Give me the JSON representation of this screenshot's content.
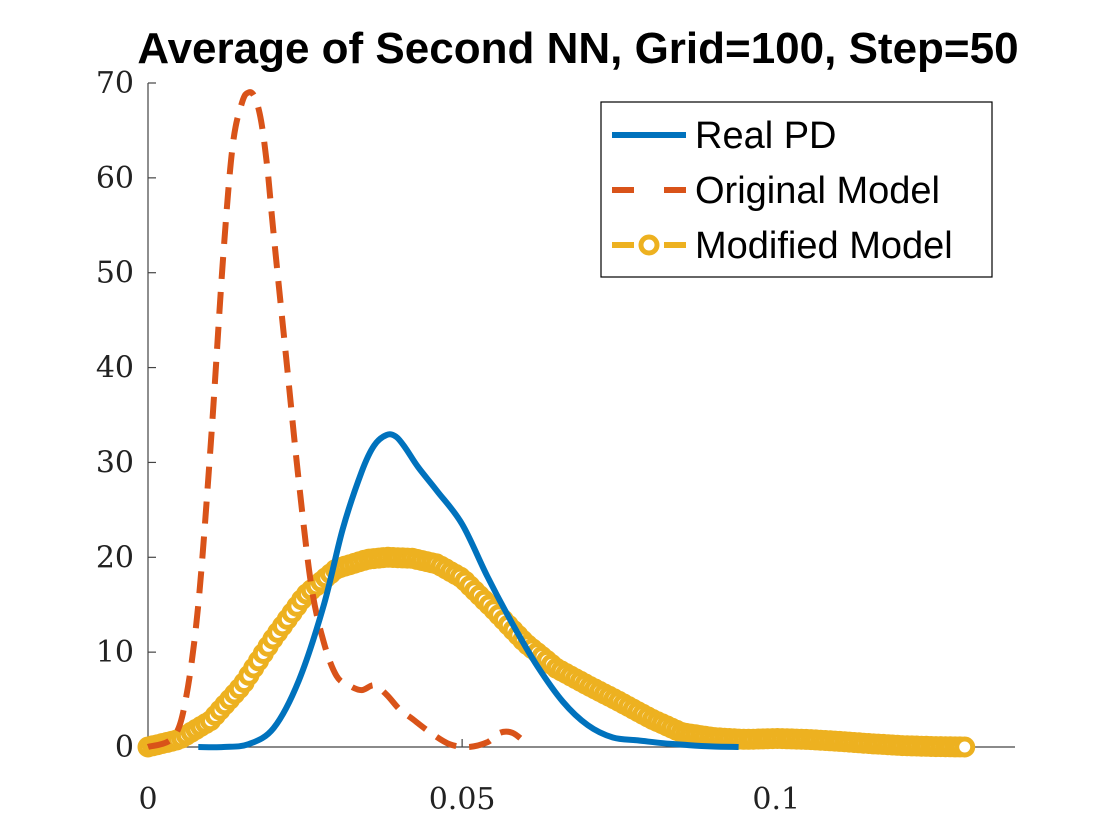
{
  "chart_data": {
    "type": "line",
    "title": "Average of Second NN, Grid=100, Step=50",
    "xlabel": "",
    "ylabel": "",
    "xlim": [
      0,
      0.138
    ],
    "ylim": [
      0,
      70
    ],
    "xticks": [
      0,
      0.05,
      0.1
    ],
    "xtick_labels": [
      "0",
      "0.05",
      "0.1"
    ],
    "yticks": [
      0,
      10,
      20,
      30,
      40,
      50,
      60,
      70
    ],
    "ytick_labels": [
      "0",
      "10",
      "20",
      "30",
      "40",
      "50",
      "60",
      "70"
    ],
    "grid": false,
    "legend": "top-right",
    "series": [
      {
        "name": "Real PD",
        "style": "solid",
        "color": "#0072BD",
        "x": [
          0.008,
          0.012,
          0.016,
          0.02,
          0.024,
          0.028,
          0.031,
          0.034,
          0.036,
          0.038,
          0.0395,
          0.041,
          0.043,
          0.046,
          0.05,
          0.054,
          0.058,
          0.062,
          0.066,
          0.07,
          0.074,
          0.078,
          0.082,
          0.086,
          0.09,
          0.094
        ],
        "y": [
          0,
          0,
          0.3,
          2,
          7,
          15,
          23,
          29,
          31.8,
          32.9,
          32.7,
          31.5,
          29.5,
          27,
          23.5,
          18,
          13,
          8.5,
          4.8,
          2.3,
          1,
          0.7,
          0.4,
          0.2,
          0.05,
          0
        ]
      },
      {
        "name": "Original Model",
        "style": "dashed",
        "color": "#D95319",
        "x": [
          0.0,
          0.004,
          0.006,
          0.008,
          0.01,
          0.012,
          0.0135,
          0.015,
          0.016,
          0.017,
          0.018,
          0.019,
          0.02,
          0.022,
          0.024,
          0.026,
          0.028,
          0.03,
          0.032,
          0.034,
          0.036,
          0.038,
          0.04,
          0.042,
          0.045,
          0.048,
          0.051,
          0.054,
          0.056,
          0.058,
          0.06
        ],
        "y": [
          0,
          1,
          5,
          15,
          32,
          52,
          63.5,
          68,
          69,
          68.5,
          66,
          61,
          54,
          41,
          28,
          17,
          11,
          7.5,
          6.5,
          6,
          6.5,
          5.5,
          4,
          3,
          1.5,
          0.3,
          0,
          0.5,
          1.5,
          1.5,
          0.5
        ]
      },
      {
        "name": "Modified Model",
        "style": "dash-circle",
        "color": "#EDB120",
        "x": [
          0.0,
          0.005,
          0.01,
          0.015,
          0.02,
          0.025,
          0.03,
          0.035,
          0.038,
          0.042,
          0.046,
          0.05,
          0.055,
          0.06,
          0.065,
          0.07,
          0.075,
          0.08,
          0.085,
          0.09,
          0.095,
          0.1,
          0.105,
          0.11,
          0.115,
          0.12,
          0.125,
          0.13
        ],
        "y": [
          0,
          0.8,
          2.8,
          6.5,
          11.5,
          16,
          18.8,
          19.8,
          20,
          19.9,
          19.3,
          17.8,
          14.5,
          11,
          8.3,
          6.5,
          4.8,
          3,
          1.5,
          1,
          0.8,
          0.9,
          0.8,
          0.6,
          0.35,
          0.15,
          0.05,
          0
        ]
      }
    ]
  }
}
